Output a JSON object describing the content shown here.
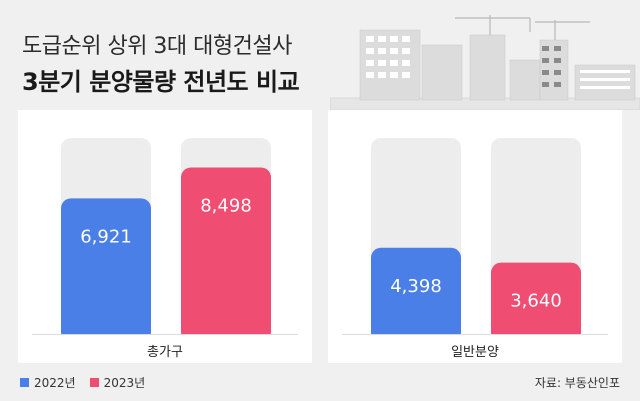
{
  "header": {
    "line1": "도급순위 상위 3대 대형건설사",
    "line2": "3분기 분양물량 전년도 비교"
  },
  "colors": {
    "series_2022": "#4a7fe8",
    "series_2023": "#ef4d72",
    "track": "#ededed"
  },
  "chart_data": [
    {
      "type": "bar",
      "categories": [
        "총가구"
      ],
      "series": [
        {
          "name": "2022년",
          "values": [
            6921
          ],
          "label": "6,921"
        },
        {
          "name": "2023년",
          "values": [
            8498
          ],
          "label": "8,498"
        }
      ],
      "xlabel": "총가구",
      "ylim": [
        0,
        10000
      ]
    },
    {
      "type": "bar",
      "categories": [
        "일반분양"
      ],
      "series": [
        {
          "name": "2022년",
          "values": [
            4398
          ],
          "label": "4,398"
        },
        {
          "name": "2023년",
          "values": [
            3640
          ],
          "label": "3,640"
        }
      ],
      "xlabel": "일반분양",
      "ylim": [
        0,
        10000
      ]
    }
  ],
  "legend": {
    "item1": "2022년",
    "item2": "2023년"
  },
  "source": "자료: 부동산인포"
}
